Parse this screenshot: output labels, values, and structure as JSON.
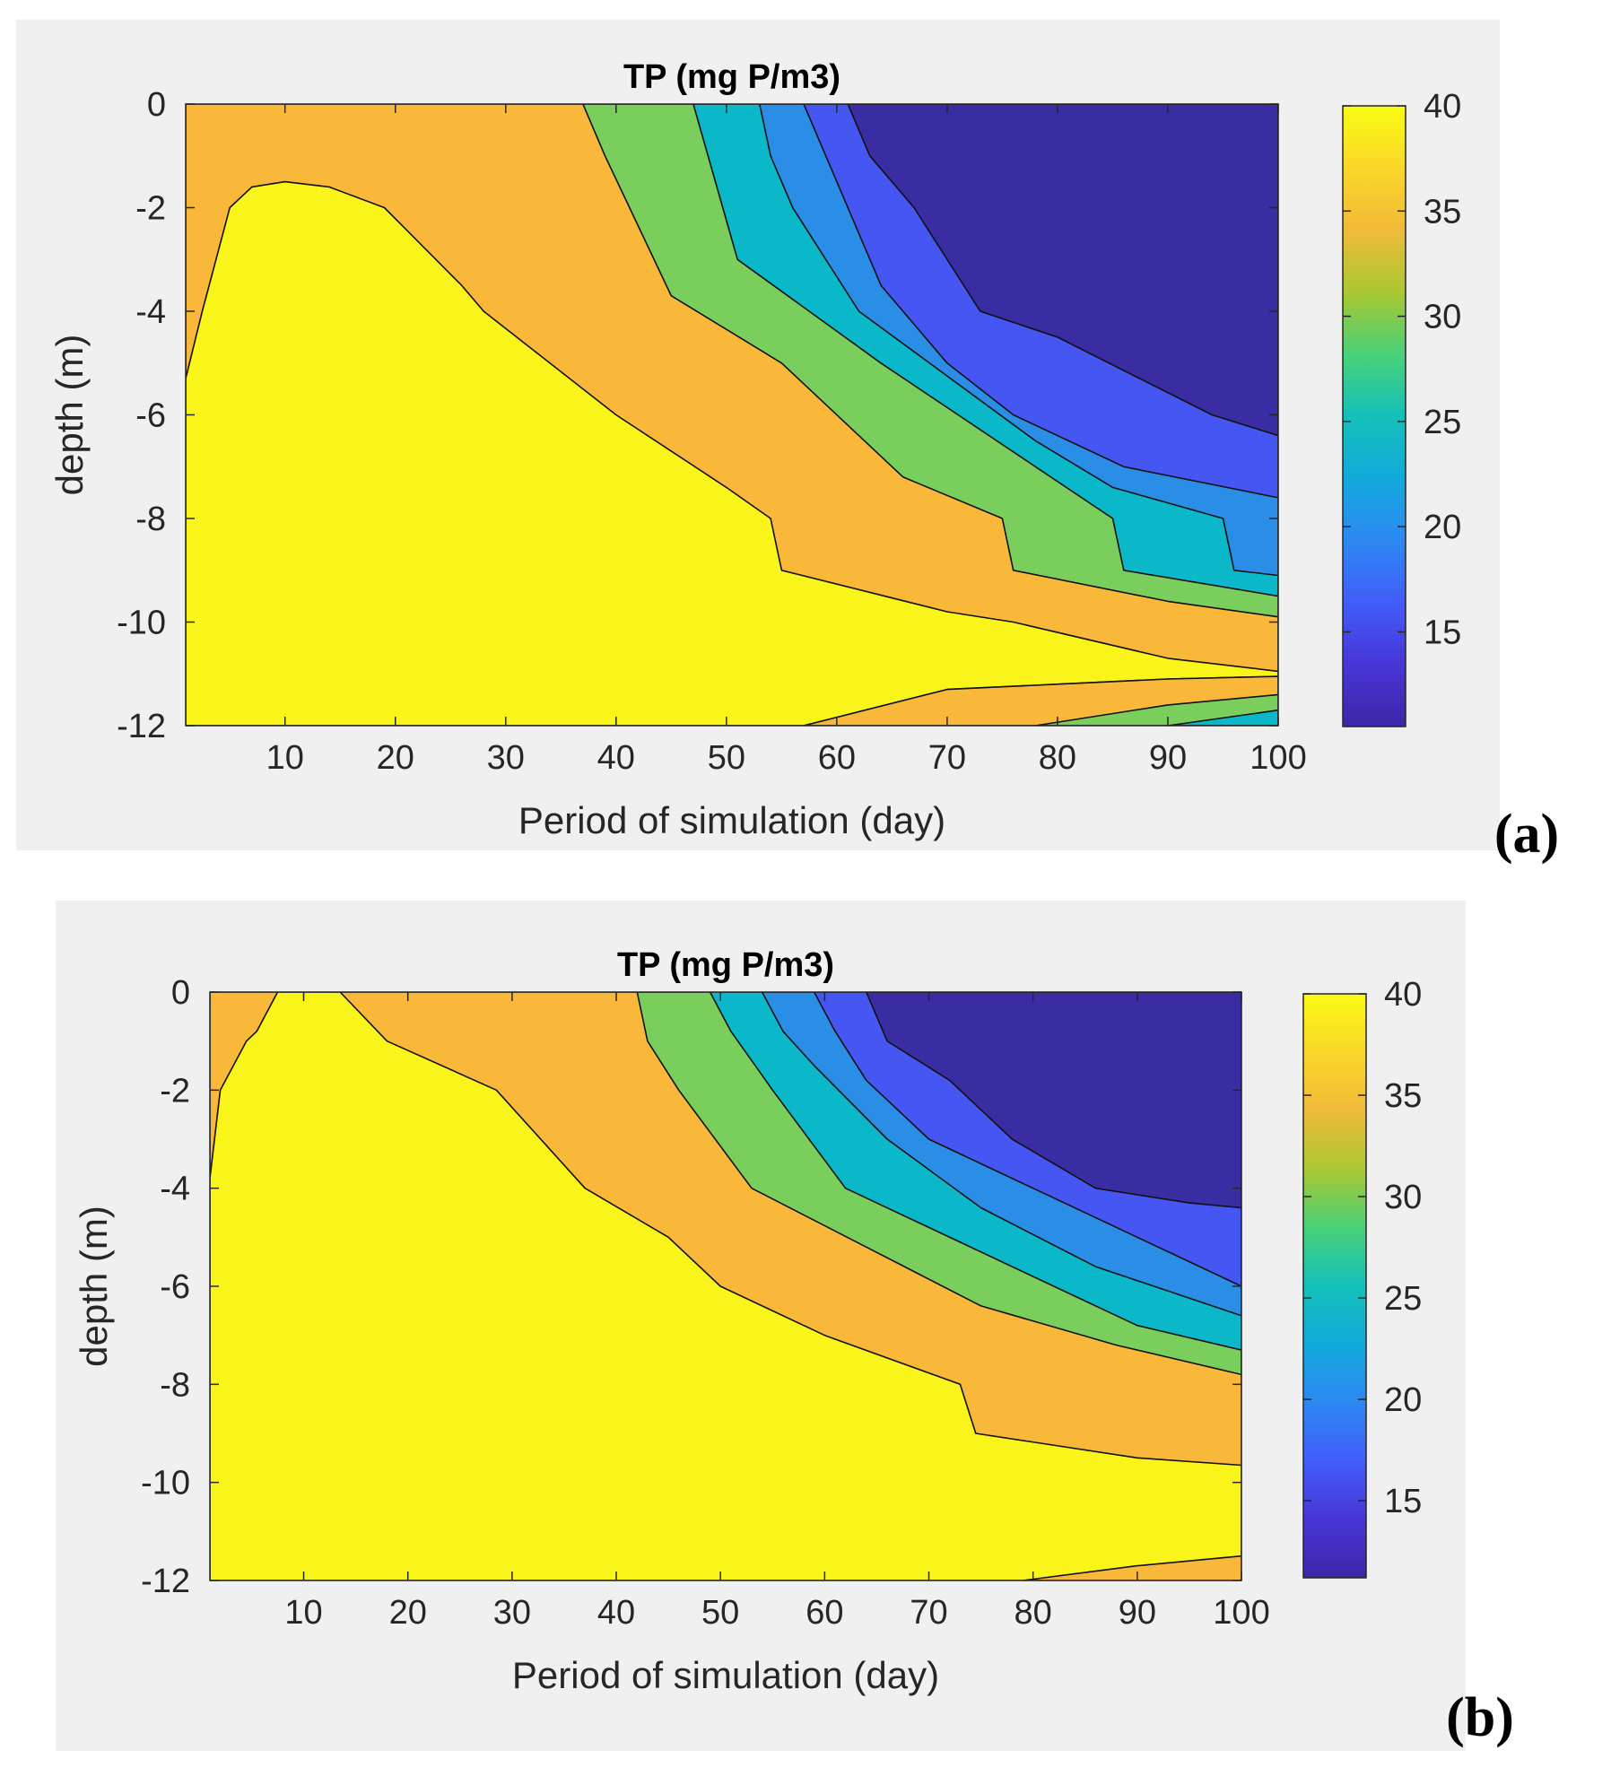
{
  "chart_data": [
    {
      "type": "contourf",
      "panel": "(a)",
      "title": "TP (mg P/m3)",
      "xlabel": "Period of simulation (day)",
      "ylabel": "depth (m)",
      "xlim": [
        1,
        100
      ],
      "ylim": [
        -12,
        0
      ],
      "xticks": [
        10,
        20,
        30,
        40,
        50,
        60,
        70,
        80,
        90,
        100
      ],
      "yticks": [
        0,
        -2,
        -4,
        -6,
        -8,
        -10,
        -12
      ],
      "colorbar": {
        "range": [
          10.5,
          40
        ],
        "ticks": [
          40,
          35,
          30,
          25,
          20,
          15
        ]
      },
      "colors": {
        "le15": "#3a2ca3",
        "c15_20": "#4556f2",
        "c20_25": "#2a8ee6",
        "c25_30": "#0ab8c9",
        "c30_35": "#7ace5c",
        "c35_40": "#f9b83a",
        "ge40": "#f9f51b"
      },
      "regions": [
        {
          "color": "c35_40",
          "points": [
            [
              1,
              0
            ],
            [
              100,
              0
            ],
            [
              100,
              -12
            ],
            [
              1,
              -12
            ]
          ]
        },
        {
          "color": "c30_35",
          "points": [
            [
              37,
              0
            ],
            [
              100,
              0
            ],
            [
              100,
              -9.9
            ],
            [
              90,
              -9.6
            ],
            [
              76,
              -9.0
            ],
            [
              75,
              -8.0
            ],
            [
              66,
              -7.2
            ],
            [
              55,
              -5.0
            ],
            [
              45,
              -3.7
            ],
            [
              39,
              -1.0
            ]
          ]
        },
        {
          "color": "c25_30",
          "points": [
            [
              47,
              0
            ],
            [
              100,
              0
            ],
            [
              100,
              -9.5
            ],
            [
              86,
              -9.0
            ],
            [
              85,
              -8.0
            ],
            [
              78,
              -7.0
            ],
            [
              64,
              -5.0
            ],
            [
              51,
              -3.0
            ]
          ]
        },
        {
          "color": "c20_25",
          "points": [
            [
              53,
              0
            ],
            [
              100,
              0
            ],
            [
              100,
              -9.1
            ],
            [
              96,
              -9.0
            ],
            [
              95,
              -8.0
            ],
            [
              85,
              -7.4
            ],
            [
              78,
              -6.5
            ],
            [
              62,
              -4.0
            ],
            [
              56,
              -2.0
            ],
            [
              54,
              -1.0
            ]
          ]
        },
        {
          "color": "c15_20",
          "points": [
            [
              57,
              0
            ],
            [
              100,
              0
            ],
            [
              100,
              -7.6
            ],
            [
              86,
              -7.0
            ],
            [
              76,
              -6.0
            ],
            [
              70,
              -5.0
            ],
            [
              64,
              -3.5
            ],
            [
              60,
              -1.5
            ]
          ]
        },
        {
          "color": "le15",
          "points": [
            [
              61,
              0
            ],
            [
              100,
              0
            ],
            [
              100,
              -6.4
            ],
            [
              94,
              -6.0
            ],
            [
              80,
              -4.5
            ],
            [
              73,
              -4.0
            ],
            [
              67,
              -2.0
            ],
            [
              63,
              -1.0
            ]
          ]
        },
        {
          "color": "ge40",
          "points": [
            [
              1,
              -5.3
            ],
            [
              2.5,
              -4.0
            ],
            [
              5,
              -2.0
            ],
            [
              7,
              -1.6
            ],
            [
              10,
              -1.5
            ],
            [
              14,
              -1.6
            ],
            [
              19,
              -2.0
            ],
            [
              26,
              -3.5
            ],
            [
              28,
              -4.0
            ],
            [
              34,
              -5.0
            ],
            [
              40,
              -6.0
            ],
            [
              50,
              -7.4
            ],
            [
              54,
              -8.0
            ],
            [
              55,
              -9.0
            ],
            [
              70,
              -9.8
            ],
            [
              76,
              -10.0
            ],
            [
              90,
              -10.7
            ],
            [
              100,
              -10.95
            ],
            [
              100,
              -11.05
            ],
            [
              90,
              -11.1
            ],
            [
              70,
              -11.3
            ],
            [
              57,
              -12
            ],
            [
              1,
              -12
            ]
          ]
        },
        {
          "color": "c35_40",
          "points": [
            [
              57,
              -12
            ],
            [
              70,
              -11.3
            ],
            [
              90,
              -11.1
            ],
            [
              100,
              -11.05
            ],
            [
              100,
              -12
            ]
          ]
        },
        {
          "color": "c30_35",
          "points": [
            [
              78,
              -12
            ],
            [
              90,
              -11.6
            ],
            [
              100,
              -11.4
            ],
            [
              100,
              -12
            ]
          ]
        },
        {
          "color": "c25_30",
          "points": [
            [
              90,
              -12
            ],
            [
              100,
              -11.7
            ],
            [
              100,
              -12
            ]
          ]
        }
      ]
    },
    {
      "type": "contourf",
      "panel": "(b)",
      "title": "TP (mg P/m3)",
      "xlabel": "Period of simulation (day)",
      "ylabel": "depth (m)",
      "xlim": [
        1,
        100
      ],
      "ylim": [
        -12,
        0
      ],
      "xticks": [
        10,
        20,
        30,
        40,
        50,
        60,
        70,
        80,
        90,
        100
      ],
      "yticks": [
        0,
        -2,
        -4,
        -6,
        -8,
        -10,
        -12
      ],
      "colorbar": {
        "range": [
          11.2,
          40
        ],
        "ticks": [
          40,
          35,
          30,
          25,
          20,
          15
        ]
      },
      "colors": {
        "le15": "#3a2ca3",
        "c15_20": "#4556f2",
        "c20_25": "#2a8ee6",
        "c25_30": "#0ab8c9",
        "c30_35": "#7ace5c",
        "c35_40": "#f9b83a",
        "ge40": "#f9f51b"
      },
      "regions": [
        {
          "color": "c35_40",
          "points": [
            [
              1,
              0
            ],
            [
              100,
              0
            ],
            [
              100,
              -12
            ],
            [
              1,
              -12
            ]
          ]
        },
        {
          "color": "c30_35",
          "points": [
            [
              42,
              0
            ],
            [
              100,
              0
            ],
            [
              100,
              -7.8
            ],
            [
              88,
              -7.2
            ],
            [
              75,
              -6.4
            ],
            [
              64,
              -5.2
            ],
            [
              53,
              -4.0
            ],
            [
              46,
              -2.0
            ],
            [
              43,
              -1.0
            ]
          ]
        },
        {
          "color": "c25_30",
          "points": [
            [
              49,
              0
            ],
            [
              100,
              0
            ],
            [
              100,
              -7.3
            ],
            [
              90,
              -6.8
            ],
            [
              80,
              -5.8
            ],
            [
              70,
              -4.8
            ],
            [
              62,
              -4.0
            ],
            [
              55,
              -2.0
            ],
            [
              51,
              -0.8
            ]
          ]
        },
        {
          "color": "c20_25",
          "points": [
            [
              54,
              0
            ],
            [
              100,
              0
            ],
            [
              100,
              -6.6
            ],
            [
              86,
              -5.6
            ],
            [
              75,
              -4.4
            ],
            [
              66,
              -3.0
            ],
            [
              59,
              -1.5
            ],
            [
              56,
              -0.8
            ]
          ]
        },
        {
          "color": "c15_20",
          "points": [
            [
              59,
              0
            ],
            [
              100,
              0
            ],
            [
              100,
              -6.0
            ],
            [
              90,
              -5.0
            ],
            [
              80,
              -4.0
            ],
            [
              70,
              -3.0
            ],
            [
              64,
              -1.8
            ],
            [
              61,
              -0.8
            ]
          ]
        },
        {
          "color": "le15",
          "points": [
            [
              64,
              0
            ],
            [
              100,
              0
            ],
            [
              100,
              -4.4
            ],
            [
              95,
              -4.3
            ],
            [
              86,
              -4.0
            ],
            [
              78,
              -3.0
            ],
            [
              72,
              -1.8
            ],
            [
              66,
              -1.0
            ]
          ]
        },
        {
          "color": "ge40",
          "points": [
            [
              7.5,
              0
            ],
            [
              13.5,
              0
            ],
            [
              18,
              -1.0
            ],
            [
              28.5,
              -2.0
            ],
            [
              37,
              -4.0
            ],
            [
              45,
              -5.0
            ],
            [
              50,
              -6.0
            ],
            [
              60,
              -7.0
            ],
            [
              73,
              -8.0
            ],
            [
              74.5,
              -9.0
            ],
            [
              90,
              -9.5
            ],
            [
              100,
              -9.65
            ],
            [
              100,
              -11.5
            ],
            [
              90,
              -11.7
            ],
            [
              79,
              -12
            ],
            [
              1,
              -12
            ],
            [
              1,
              -3.8
            ],
            [
              2,
              -2.0
            ],
            [
              4.5,
              -1.0
            ],
            [
              5.5,
              -0.8
            ]
          ]
        }
      ]
    }
  ]
}
